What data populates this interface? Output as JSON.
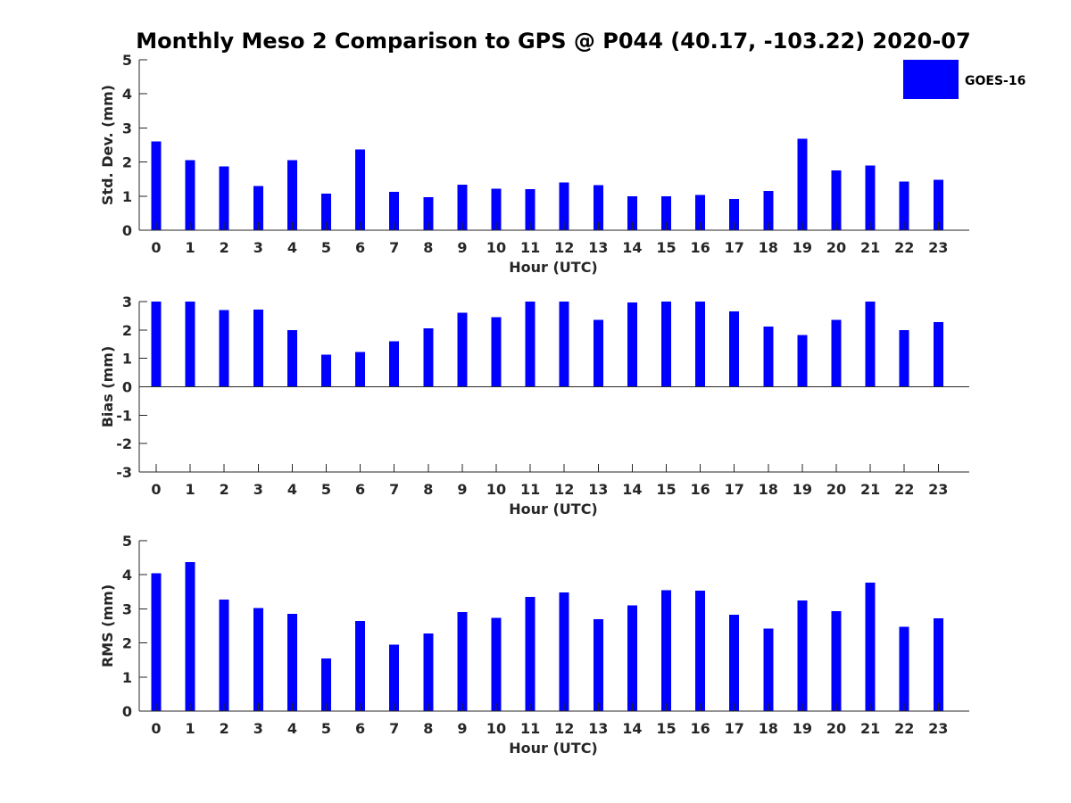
{
  "chart_data": {
    "title": "Monthly Meso 2 Comparison to GPS @ P044 (40.17, -103.22) 2020-07",
    "legend": {
      "labels": [
        "GOES-16"
      ],
      "placement": "top-right"
    },
    "colors": {
      "bar": "#0000ff",
      "axis": "#262626"
    },
    "panels": [
      {
        "type": "bar",
        "xlabel": "Hour (UTC)",
        "ylabel": "Std. Dev. (mm)",
        "ylim": [
          0,
          5
        ],
        "yticks": [
          0,
          1,
          2,
          3,
          4,
          5
        ],
        "categories": [
          "0",
          "1",
          "2",
          "3",
          "4",
          "5",
          "6",
          "7",
          "8",
          "9",
          "10",
          "11",
          "12",
          "13",
          "14",
          "15",
          "16",
          "17",
          "18",
          "19",
          "20",
          "21",
          "22",
          "23"
        ],
        "series": [
          {
            "name": "GOES-16",
            "values": [
              2.6,
              2.05,
              1.87,
              1.3,
              2.05,
              1.07,
              2.37,
              1.12,
              0.97,
              1.33,
              1.22,
              1.2,
              1.4,
              1.32,
              1.0,
              1.0,
              1.03,
              0.92,
              1.15,
              2.68,
              1.75,
              1.9,
              1.43,
              1.48
            ]
          }
        ]
      },
      {
        "type": "bar",
        "xlabel": "Hour (UTC)",
        "ylabel": "Bias (mm)",
        "ylim": [
          -3,
          3
        ],
        "yticks": [
          -3,
          -2,
          -1,
          0,
          1,
          2,
          3
        ],
        "categories": [
          "0",
          "1",
          "2",
          "3",
          "4",
          "5",
          "6",
          "7",
          "8",
          "9",
          "10",
          "11",
          "12",
          "13",
          "14",
          "15",
          "16",
          "17",
          "18",
          "19",
          "20",
          "21",
          "22",
          "23"
        ],
        "series": [
          {
            "name": "GOES-16",
            "values": [
              3.0,
              3.0,
              2.7,
              2.72,
              2.0,
              1.13,
              1.22,
              1.6,
              2.05,
              2.6,
              2.45,
              3.0,
              3.0,
              2.35,
              2.97,
              3.0,
              3.0,
              2.65,
              2.12,
              1.82,
              2.35,
              3.0,
              2.0,
              2.28
            ]
          }
        ]
      },
      {
        "type": "bar",
        "xlabel": "Hour (UTC)",
        "ylabel": "RMS (mm)",
        "ylim": [
          0,
          5
        ],
        "yticks": [
          0,
          1,
          2,
          3,
          4,
          5
        ],
        "categories": [
          "0",
          "1",
          "2",
          "3",
          "4",
          "5",
          "6",
          "7",
          "8",
          "9",
          "10",
          "11",
          "12",
          "13",
          "14",
          "15",
          "16",
          "17",
          "18",
          "19",
          "20",
          "21",
          "22",
          "23"
        ],
        "series": [
          {
            "name": "GOES-16",
            "values": [
              4.05,
              4.37,
              3.27,
              3.03,
              2.85,
              1.55,
              2.65,
              1.95,
              2.28,
              2.9,
              2.73,
              3.35,
              3.48,
              2.7,
              3.1,
              3.55,
              3.53,
              2.83,
              2.42,
              3.25,
              2.93,
              3.77,
              2.47,
              2.72
            ]
          }
        ]
      }
    ]
  }
}
